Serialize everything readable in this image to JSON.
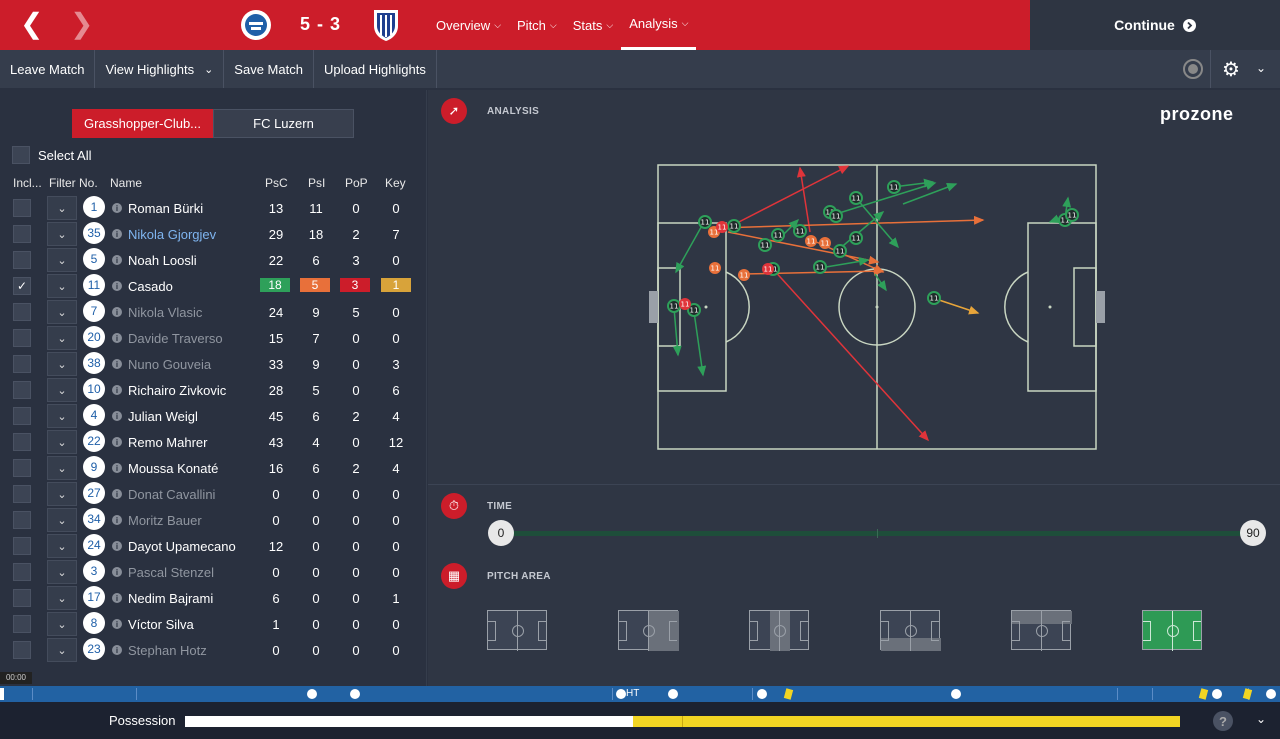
{
  "header": {
    "score": "5 - 3",
    "menu": [
      "Overview",
      "Pitch",
      "Stats",
      "Analysis"
    ],
    "active_menu": "Analysis",
    "continue_label": "Continue"
  },
  "toolbar": {
    "leave": "Leave Match",
    "highlights": "View Highlights",
    "save": "Save Match",
    "upload": "Upload Highlights"
  },
  "teams": {
    "home": "Grasshopper-Club...",
    "away": "FC Luzern"
  },
  "select_all": "Select All",
  "columns": {
    "incl": "Incl...",
    "filter": "Filter",
    "no": "No.",
    "name": "Name",
    "psc": "PsC",
    "psi": "PsI",
    "pop": "PoP",
    "key": "Key"
  },
  "players": [
    {
      "no": "1",
      "name": "Roman Bürki",
      "psc": "13",
      "psi": "11",
      "pop": "0",
      "key": "0",
      "dim": false,
      "hl": false,
      "checked": false
    },
    {
      "no": "35",
      "name": "Nikola Gjorgjev",
      "psc": "29",
      "psi": "18",
      "pop": "2",
      "key": "7",
      "dim": false,
      "hl": true,
      "checked": false
    },
    {
      "no": "5",
      "name": "Noah Loosli",
      "psc": "22",
      "psi": "6",
      "pop": "3",
      "key": "0",
      "dim": false,
      "hl": false,
      "checked": false
    },
    {
      "no": "11",
      "name": "Casado",
      "psc": "18",
      "psi": "5",
      "pop": "3",
      "key": "1",
      "dim": false,
      "hl": false,
      "checked": true
    },
    {
      "no": "7",
      "name": "Nikola Vlasic",
      "psc": "24",
      "psi": "9",
      "pop": "5",
      "key": "0",
      "dim": true,
      "hl": false,
      "checked": false
    },
    {
      "no": "20",
      "name": "Davide Traverso",
      "psc": "15",
      "psi": "7",
      "pop": "0",
      "key": "0",
      "dim": true,
      "hl": false,
      "checked": false
    },
    {
      "no": "38",
      "name": "Nuno Gouveia",
      "psc": "33",
      "psi": "9",
      "pop": "0",
      "key": "3",
      "dim": true,
      "hl": false,
      "checked": false
    },
    {
      "no": "10",
      "name": "Richairo Zivkovic",
      "psc": "28",
      "psi": "5",
      "pop": "0",
      "key": "6",
      "dim": false,
      "hl": false,
      "checked": false
    },
    {
      "no": "4",
      "name": "Julian Weigl",
      "psc": "45",
      "psi": "6",
      "pop": "2",
      "key": "4",
      "dim": false,
      "hl": false,
      "checked": false
    },
    {
      "no": "22",
      "name": "Remo Mahrer",
      "psc": "43",
      "psi": "4",
      "pop": "0",
      "key": "12",
      "dim": false,
      "hl": false,
      "checked": false
    },
    {
      "no": "9",
      "name": "Moussa Konaté",
      "psc": "16",
      "psi": "6",
      "pop": "2",
      "key": "4",
      "dim": false,
      "hl": false,
      "checked": false
    },
    {
      "no": "27",
      "name": "Donat Cavallini",
      "psc": "0",
      "psi": "0",
      "pop": "0",
      "key": "0",
      "dim": true,
      "hl": false,
      "checked": false
    },
    {
      "no": "34",
      "name": "Moritz Bauer",
      "psc": "0",
      "psi": "0",
      "pop": "0",
      "key": "0",
      "dim": true,
      "hl": false,
      "checked": false
    },
    {
      "no": "24",
      "name": "Dayot Upamecano",
      "psc": "12",
      "psi": "0",
      "pop": "0",
      "key": "0",
      "dim": false,
      "hl": false,
      "checked": false
    },
    {
      "no": "3",
      "name": "Pascal Stenzel",
      "psc": "0",
      "psi": "0",
      "pop": "0",
      "key": "0",
      "dim": true,
      "hl": false,
      "checked": false
    },
    {
      "no": "17",
      "name": "Nedim Bajrami",
      "psc": "6",
      "psi": "0",
      "pop": "0",
      "key": "1",
      "dim": false,
      "hl": false,
      "checked": false
    },
    {
      "no": "8",
      "name": "Víctor Silva",
      "psc": "1",
      "psi": "0",
      "pop": "0",
      "key": "0",
      "dim": false,
      "hl": false,
      "checked": false
    },
    {
      "no": "23",
      "name": "Stephan Hotz",
      "psc": "0",
      "psi": "0",
      "pop": "0",
      "key": "0",
      "dim": true,
      "hl": false,
      "checked": false
    }
  ],
  "analysis": {
    "title": "ANALYSIS",
    "brand": "prozone",
    "time_title": "TIME",
    "time_start": "0",
    "time_end": "90",
    "area_title": "PITCH AREA"
  },
  "timeline": {
    "clock": "00:00",
    "ht": "HT"
  },
  "possession": {
    "label": "Possession",
    "home_fraction": 0.45
  },
  "colors": {
    "red": "#cc1d2a",
    "green": "#2ea05a",
    "orange": "#e8703a",
    "yellow": "#f2d523",
    "pitch_line": "#c9d6c2"
  }
}
